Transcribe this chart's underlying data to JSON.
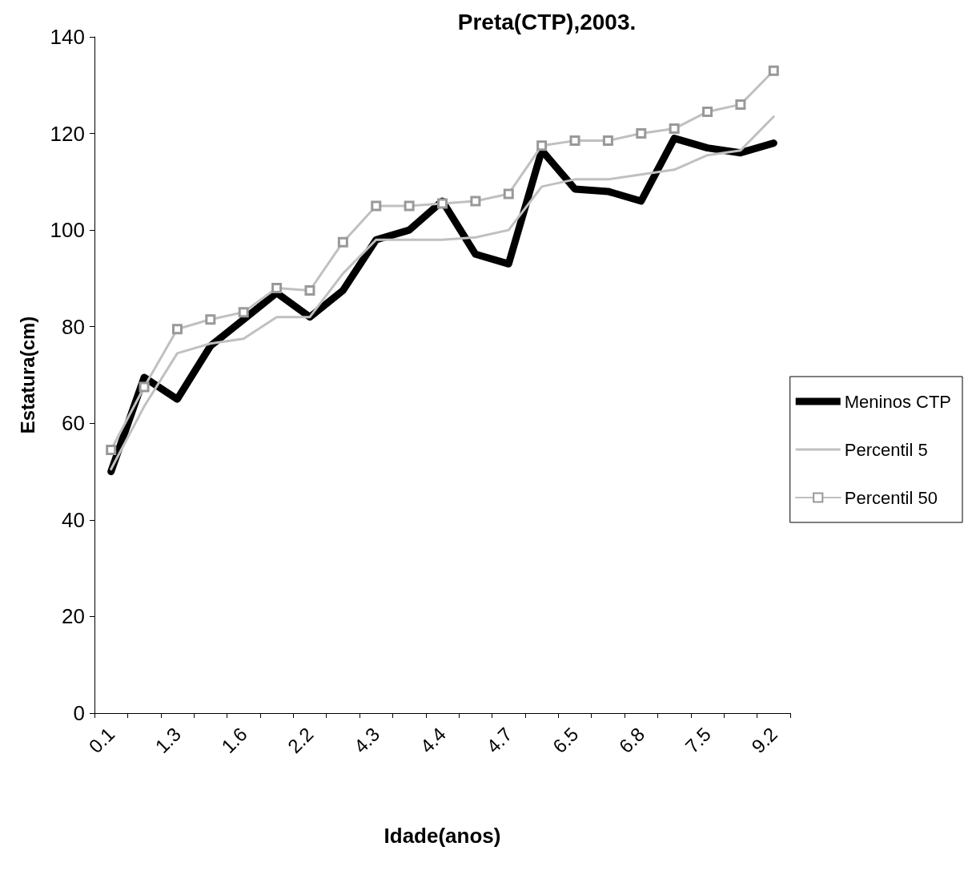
{
  "chart_data": {
    "type": "line",
    "title": "Preta(CTP),2003.",
    "xlabel": "Idade(anos)",
    "ylabel": "Estatura(cm)",
    "categories": [
      "0.1",
      null,
      "1.3",
      null,
      "1.6",
      null,
      "2.2",
      null,
      "4.3",
      null,
      "4.4",
      null,
      "4.7",
      null,
      "6.5",
      null,
      "6.8",
      null,
      "7.5",
      null,
      "9.2"
    ],
    "series": [
      {
        "name": "Meninos CTP",
        "color": "#000000",
        "marker": "none",
        "values": [
          50,
          69.5,
          65,
          76,
          81.5,
          87,
          82,
          87.5,
          98,
          100,
          106,
          95,
          93,
          116.5,
          108.5,
          108,
          106,
          119,
          117,
          116,
          118
        ]
      },
      {
        "name": "Percentil 5",
        "color": "#c0c0c0",
        "marker": "none",
        "values": [
          50.5,
          63.5,
          74.5,
          76.5,
          77.5,
          82,
          82,
          91,
          98,
          98,
          98,
          98.5,
          100,
          109,
          110.5,
          110.5,
          111.5,
          112.5,
          115.5,
          116.5,
          123.5
        ]
      },
      {
        "name": "Percentil 50",
        "color": "#c0c0c0",
        "marker": "square",
        "values": [
          54.5,
          67.5,
          79.5,
          81.5,
          83,
          88,
          87.5,
          97.5,
          105,
          105,
          105.5,
          106,
          107.5,
          117.5,
          118.5,
          118.5,
          120,
          121,
          124.5,
          126,
          133
        ]
      }
    ],
    "ylim": [
      0,
      140
    ],
    "yticks": [
      0,
      20,
      40,
      60,
      80,
      100,
      120,
      140
    ],
    "grid": false,
    "legend": "right"
  }
}
